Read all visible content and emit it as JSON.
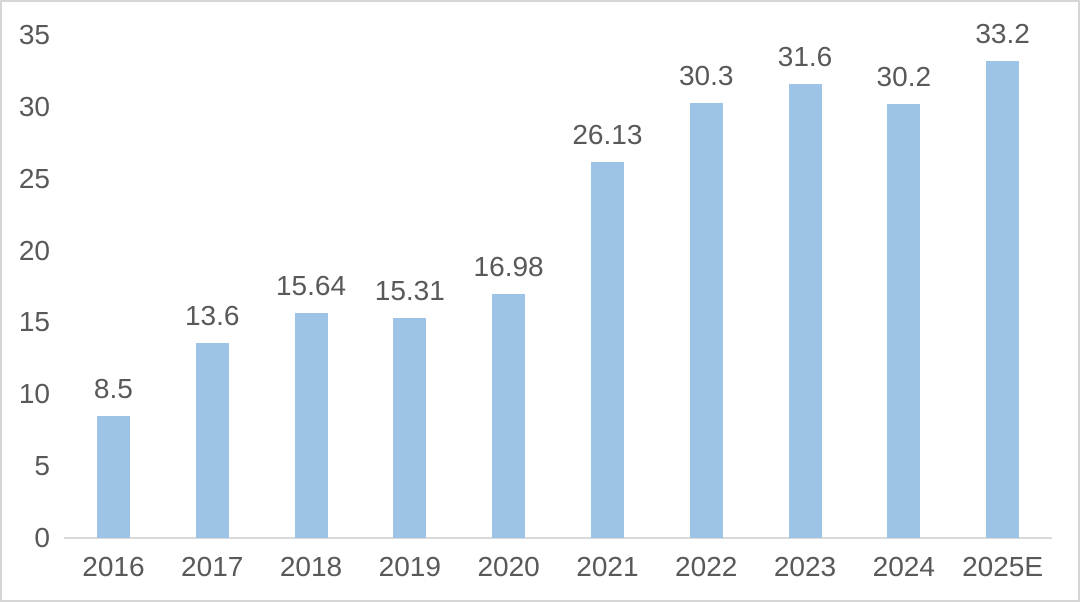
{
  "chart_data": {
    "type": "bar",
    "title": "",
    "xlabel": "",
    "ylabel": "",
    "categories": [
      "2016",
      "2017",
      "2018",
      "2019",
      "2020",
      "2021",
      "2022",
      "2023",
      "2024",
      "2025E"
    ],
    "values": [
      8.5,
      13.6,
      15.64,
      15.31,
      16.98,
      26.13,
      30.3,
      31.6,
      30.2,
      33.2
    ],
    "data_labels": [
      "8.5",
      "13.6",
      "15.64",
      "15.31",
      "16.98",
      "26.13",
      "30.3",
      "31.6",
      "30.2",
      "33.2"
    ],
    "y_ticks": [
      "0",
      "5",
      "10",
      "15",
      "20",
      "25",
      "30",
      "35"
    ],
    "y_tick_values": [
      0,
      5,
      10,
      15,
      20,
      25,
      30,
      35
    ],
    "ylim": [
      0,
      35
    ],
    "grid": false,
    "legend": false,
    "colors": {
      "bar_fill": "#9DC3E6",
      "text": "#595959",
      "axis_line": "#D9D9D9",
      "frame_border": "#D6D6D6",
      "background": "#FFFFFF"
    }
  }
}
